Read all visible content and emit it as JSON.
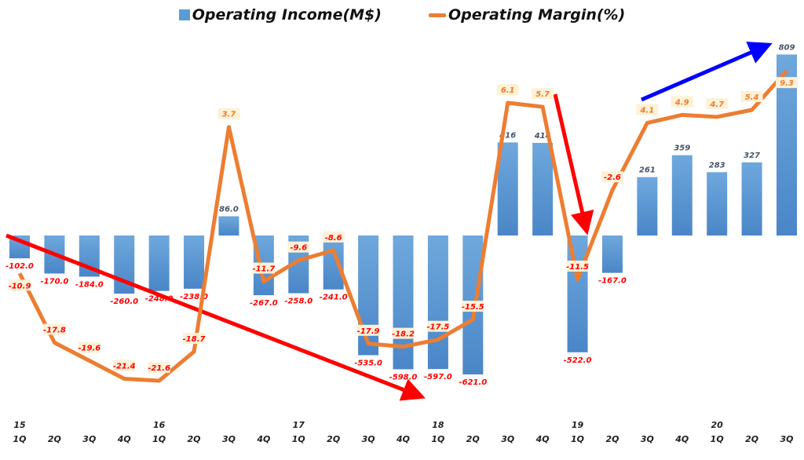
{
  "chart_data": {
    "type": "bar+line",
    "title": "",
    "legend_position": "top-center",
    "categories": [
      "1Q",
      "2Q",
      "3Q",
      "4Q",
      "1Q",
      "2Q",
      "3Q",
      "4Q",
      "1Q",
      "2Q",
      "3Q",
      "4Q",
      "1Q",
      "2Q",
      "3Q",
      "4Q",
      "1Q",
      "2Q",
      "3Q",
      "4Q",
      "1Q",
      "2Q",
      "3Q"
    ],
    "year_labels": [
      {
        "index": 0,
        "label": "15"
      },
      {
        "index": 4,
        "label": "16"
      },
      {
        "index": 8,
        "label": "17"
      },
      {
        "index": 12,
        "label": "18"
      },
      {
        "index": 16,
        "label": "19"
      },
      {
        "index": 20,
        "label": "20"
      }
    ],
    "series": [
      {
        "name": "Operating Income(M$)",
        "type": "bar",
        "color": "#5b9bd5",
        "values": [
          -102.0,
          -170.0,
          -184.0,
          -260.0,
          -248.0,
          -238.0,
          86.0,
          -267.0,
          -258.0,
          -241.0,
          -535.0,
          -598.0,
          -597.0,
          -621.0,
          416,
          414,
          -522.0,
          -167.0,
          261,
          359,
          283,
          327,
          809
        ]
      },
      {
        "name": "Operating Margin(%)",
        "type": "line",
        "color": "#ed7d31",
        "values": [
          -10.9,
          -17.8,
          -19.6,
          -21.4,
          -21.6,
          -18.7,
          3.7,
          -11.7,
          -9.6,
          -8.6,
          -17.9,
          -18.2,
          -17.5,
          -15.5,
          6.1,
          5.7,
          -11.5,
          -2.6,
          4.1,
          4.9,
          4.7,
          5.4,
          9.3
        ]
      }
    ],
    "annotations": [
      {
        "type": "arrow",
        "color": "#ff0000",
        "from_index": 0,
        "to_index": 12,
        "meaning": "downtrend"
      },
      {
        "type": "arrow",
        "color": "#ff0000",
        "from_index": 15,
        "to_index": 16,
        "meaning": "drop"
      },
      {
        "type": "arrow",
        "color": "#0000ff",
        "from_index": 18,
        "to_index": 22,
        "meaning": "uptrend"
      }
    ]
  }
}
